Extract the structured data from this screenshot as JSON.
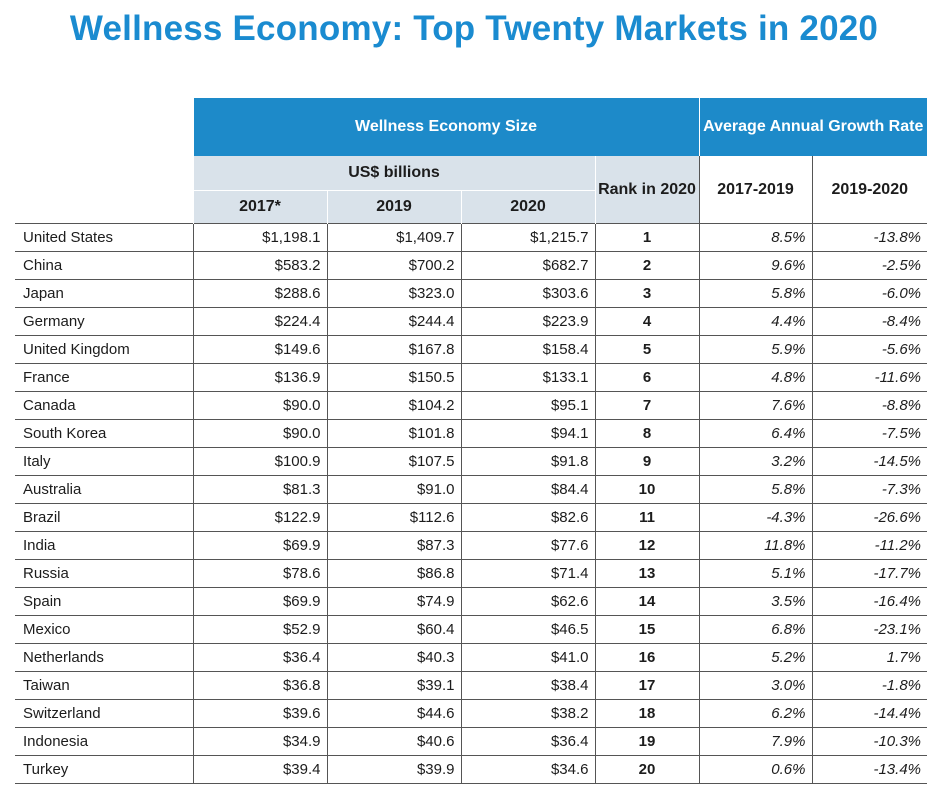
{
  "chart_data": {
    "type": "table",
    "title": "Wellness Economy: Top Twenty Markets in 2020",
    "header": {
      "size_group": "Wellness Economy Size",
      "unit": "US$ billions",
      "growth_group": "Average Annual Growth Rate",
      "rank_label": "Rank in 2020",
      "col_2017": "2017*",
      "col_2019": "2019",
      "col_2020": "2020",
      "col_growth_a": "2017-2019",
      "col_growth_b": "2019-2020"
    },
    "rows": [
      {
        "country": "United States",
        "y2017": "$1,198.1",
        "y2019": "$1,409.7",
        "y2020": "$1,215.7",
        "rank": "1",
        "growth_a": "8.5%",
        "growth_b": "-13.8%"
      },
      {
        "country": "China",
        "y2017": "$583.2",
        "y2019": "$700.2",
        "y2020": "$682.7",
        "rank": "2",
        "growth_a": "9.6%",
        "growth_b": "-2.5%"
      },
      {
        "country": "Japan",
        "y2017": "$288.6",
        "y2019": "$323.0",
        "y2020": "$303.6",
        "rank": "3",
        "growth_a": "5.8%",
        "growth_b": "-6.0%"
      },
      {
        "country": "Germany",
        "y2017": "$224.4",
        "y2019": "$244.4",
        "y2020": "$223.9",
        "rank": "4",
        "growth_a": "4.4%",
        "growth_b": "-8.4%"
      },
      {
        "country": "United Kingdom",
        "y2017": "$149.6",
        "y2019": "$167.8",
        "y2020": "$158.4",
        "rank": "5",
        "growth_a": "5.9%",
        "growth_b": "-5.6%"
      },
      {
        "country": "France",
        "y2017": "$136.9",
        "y2019": "$150.5",
        "y2020": "$133.1",
        "rank": "6",
        "growth_a": "4.8%",
        "growth_b": "-11.6%"
      },
      {
        "country": "Canada",
        "y2017": "$90.0",
        "y2019": "$104.2",
        "y2020": "$95.1",
        "rank": "7",
        "growth_a": "7.6%",
        "growth_b": "-8.8%"
      },
      {
        "country": "South Korea",
        "y2017": "$90.0",
        "y2019": "$101.8",
        "y2020": "$94.1",
        "rank": "8",
        "growth_a": "6.4%",
        "growth_b": "-7.5%"
      },
      {
        "country": "Italy",
        "y2017": "$100.9",
        "y2019": "$107.5",
        "y2020": "$91.8",
        "rank": "9",
        "growth_a": "3.2%",
        "growth_b": "-14.5%"
      },
      {
        "country": "Australia",
        "y2017": "$81.3",
        "y2019": "$91.0",
        "y2020": "$84.4",
        "rank": "10",
        "growth_a": "5.8%",
        "growth_b": "-7.3%"
      },
      {
        "country": "Brazil",
        "y2017": "$122.9",
        "y2019": "$112.6",
        "y2020": "$82.6",
        "rank": "11",
        "growth_a": "-4.3%",
        "growth_b": "-26.6%"
      },
      {
        "country": "India",
        "y2017": "$69.9",
        "y2019": "$87.3",
        "y2020": "$77.6",
        "rank": "12",
        "growth_a": "11.8%",
        "growth_b": "-11.2%"
      },
      {
        "country": "Russia",
        "y2017": "$78.6",
        "y2019": "$86.8",
        "y2020": "$71.4",
        "rank": "13",
        "growth_a": "5.1%",
        "growth_b": "-17.7%"
      },
      {
        "country": "Spain",
        "y2017": "$69.9",
        "y2019": "$74.9",
        "y2020": "$62.6",
        "rank": "14",
        "growth_a": "3.5%",
        "growth_b": "-16.4%"
      },
      {
        "country": "Mexico",
        "y2017": "$52.9",
        "y2019": "$60.4",
        "y2020": "$46.5",
        "rank": "15",
        "growth_a": "6.8%",
        "growth_b": "-23.1%"
      },
      {
        "country": "Netherlands",
        "y2017": "$36.4",
        "y2019": "$40.3",
        "y2020": "$41.0",
        "rank": "16",
        "growth_a": "5.2%",
        "growth_b": "1.7%"
      },
      {
        "country": "Taiwan",
        "y2017": "$36.8",
        "y2019": "$39.1",
        "y2020": "$38.4",
        "rank": "17",
        "growth_a": "3.0%",
        "growth_b": "-1.8%"
      },
      {
        "country": "Switzerland",
        "y2017": "$39.6",
        "y2019": "$44.6",
        "y2020": "$38.2",
        "rank": "18",
        "growth_a": "6.2%",
        "growth_b": "-14.4%"
      },
      {
        "country": "Indonesia",
        "y2017": "$34.9",
        "y2019": "$40.6",
        "y2020": "$36.4",
        "rank": "19",
        "growth_a": "7.9%",
        "growth_b": "-10.3%"
      },
      {
        "country": "Turkey",
        "y2017": "$39.4",
        "y2019": "$39.9",
        "y2020": "$34.6",
        "rank": "20",
        "growth_a": "0.6%",
        "growth_b": "-13.4%"
      }
    ],
    "colors": {
      "title": "#1a8bd0",
      "header_blue": "#1d8ac9",
      "header_gray": "#d9e2ea"
    }
  }
}
